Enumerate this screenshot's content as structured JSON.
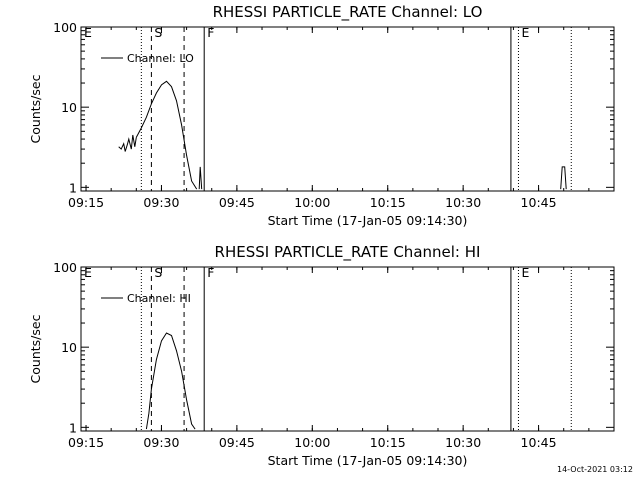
{
  "chart_data": [
    {
      "type": "line",
      "title": "RHESSI PARTICLE_RATE Channel: LO",
      "xlabel": "Start Time (17-Jan-05 09:14:30)",
      "ylabel": "Counts/sec",
      "y_scale": "log",
      "ylim": [
        0.9,
        100
      ],
      "xlim": [
        "09:14",
        "11:00"
      ],
      "x_tick_labels": [
        "09:15",
        "09:30",
        "09:45",
        "10:00",
        "10:15",
        "10:30",
        "10:45"
      ],
      "y_tick_labels": [
        "1",
        "10",
        "100"
      ],
      "legend": {
        "placement": "top-left",
        "entries": [
          "Channel: LO"
        ]
      },
      "grid": false,
      "series": [
        {
          "name": "Channel: LO",
          "segments": [
            {
              "x": [
                "09:21.5",
                "09:22.0",
                "09:22.5",
                "09:22.8",
                "09:23.2",
                "09:23.5",
                "09:24.0",
                "09:24.3",
                "09:24.7",
                "09:25.0"
              ],
              "y": [
                3.2,
                3.0,
                3.5,
                2.8,
                3.4,
                4.0,
                3.0,
                4.5,
                3.2,
                4.2
              ]
            },
            {
              "x": [
                "09:25.0",
                "09:26.0",
                "09:27.0",
                "09:28.0",
                "09:29.0",
                "09:30.0",
                "09:31.0",
                "09:32.0",
                "09:33.0",
                "09:34.0",
                "09:35.0",
                "09:36.0",
                "09:37.0"
              ],
              "y": [
                4.2,
                5.5,
                7.5,
                11,
                15,
                19,
                21,
                18,
                12,
                6,
                2.5,
                1.2,
                0.95
              ]
            },
            {
              "x": [
                "09:37.5",
                "09:37.7",
                "09:38.0"
              ],
              "y": [
                0.95,
                1.8,
                0.95
              ]
            },
            {
              "x": [
                "10:49.4",
                "10:49.7",
                "10:50.2",
                "10:50.5"
              ],
              "y": [
                0.95,
                1.8,
                1.8,
                0.95
              ]
            }
          ]
        }
      ],
      "markers": [
        {
          "label": "E",
          "time": "09:14",
          "style": "none"
        },
        {
          "label": "",
          "time": "09:26",
          "style": "dotted"
        },
        {
          "label": "S",
          "time": "09:28",
          "style": "dashed"
        },
        {
          "label": "",
          "time": "09:34.5",
          "style": "dashed"
        },
        {
          "label": "F",
          "time": "09:38.5",
          "style": "solid"
        },
        {
          "label": "",
          "time": "10:39.5",
          "style": "solid"
        },
        {
          "label": "E",
          "time": "10:41",
          "style": "dotted"
        },
        {
          "label": "",
          "time": "10:51.5",
          "style": "dotted"
        }
      ]
    },
    {
      "type": "line",
      "title": "RHESSI PARTICLE_RATE Channel: HI",
      "xlabel": "Start Time (17-Jan-05 09:14:30)",
      "ylabel": "Counts/sec",
      "y_scale": "log",
      "ylim": [
        0.9,
        100
      ],
      "xlim": [
        "09:14",
        "11:00"
      ],
      "x_tick_labels": [
        "09:15",
        "09:30",
        "09:45",
        "10:00",
        "10:15",
        "10:30",
        "10:45"
      ],
      "y_tick_labels": [
        "1",
        "10",
        "100"
      ],
      "legend": {
        "placement": "top-left",
        "entries": [
          "Channel: HI"
        ]
      },
      "grid": false,
      "series": [
        {
          "name": "Channel: HI",
          "segments": [
            {
              "x": [
                "09:27.0",
                "09:27.5",
                "09:28.0",
                "09:29.0",
                "09:30.0",
                "09:31.0",
                "09:32.0",
                "09:33.0",
                "09:34.0",
                "09:35.0",
                "09:36.0",
                "09:36.7"
              ],
              "y": [
                0.95,
                1.5,
                3.0,
                7.0,
                12,
                15,
                14,
                9,
                5,
                2.2,
                1.1,
                0.95
              ]
            }
          ]
        }
      ],
      "markers": [
        {
          "label": "E",
          "time": "09:14",
          "style": "none"
        },
        {
          "label": "",
          "time": "09:26",
          "style": "dotted"
        },
        {
          "label": "S",
          "time": "09:28",
          "style": "dashed"
        },
        {
          "label": "",
          "time": "09:34.5",
          "style": "dashed"
        },
        {
          "label": "F",
          "time": "09:38.5",
          "style": "solid"
        },
        {
          "label": "",
          "time": "10:39.5",
          "style": "solid"
        },
        {
          "label": "E",
          "time": "10:41",
          "style": "dotted"
        },
        {
          "label": "",
          "time": "10:51.5",
          "style": "dotted"
        }
      ]
    }
  ],
  "footer": {
    "timestamp": "14-Oct-2021 03:12"
  }
}
